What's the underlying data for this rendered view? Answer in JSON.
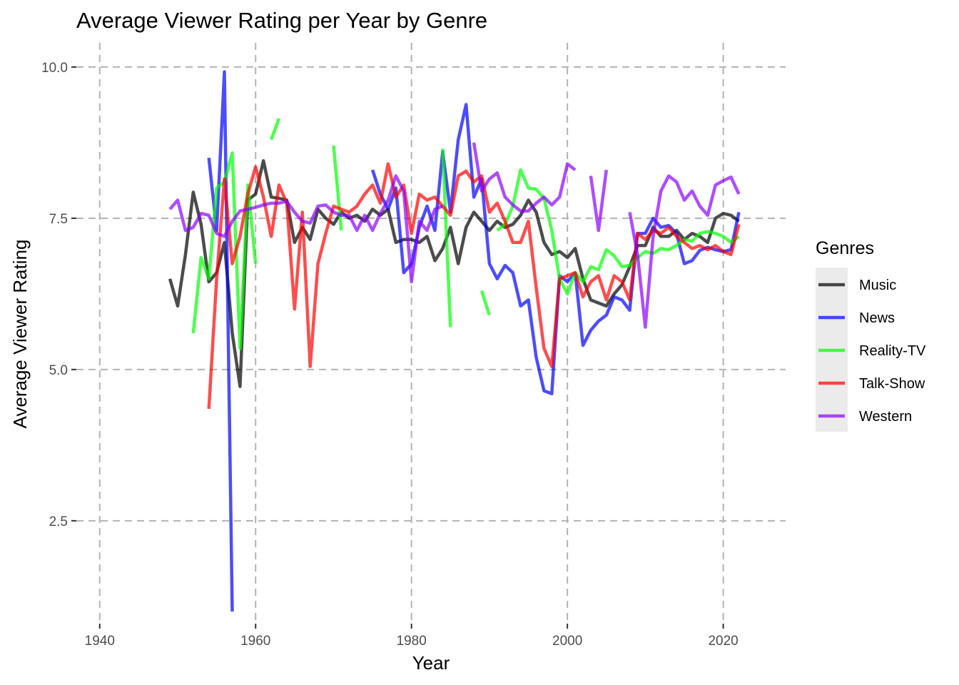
{
  "chart_data": {
    "type": "line",
    "title": "Average Viewer Rating per Year by Genre",
    "xlabel": "Year",
    "ylabel": "Average Viewer Rating",
    "xlim": [
      1937,
      2028
    ],
    "ylim": [
      0.8,
      10.4
    ],
    "x_ticks": [
      1940,
      1960,
      1980,
      2000,
      2020
    ],
    "y_ticks": [
      2.5,
      5.0,
      7.5,
      10.0
    ],
    "x_tick_labels": [
      "1940",
      "1960",
      "1980",
      "2000",
      "2020"
    ],
    "y_tick_labels": [
      "2.5",
      "5.0",
      "7.5",
      "10.0"
    ],
    "grid": true,
    "legend": {
      "title": "Genres",
      "placement": "right"
    },
    "series": [
      {
        "name": "Music",
        "color": "#000000",
        "points": [
          [
            1949,
            6.5
          ],
          [
            1950,
            6.05
          ],
          [
            1951,
            6.9
          ],
          [
            1952,
            7.93
          ],
          [
            1953,
            7.4
          ],
          [
            1954,
            6.45
          ],
          [
            1955,
            6.6
          ],
          [
            1956,
            7.1
          ],
          [
            1957,
            5.6
          ],
          [
            1958,
            4.72
          ],
          [
            1959,
            7.8
          ],
          [
            1960,
            7.9
          ],
          [
            1961,
            8.45
          ],
          [
            1962,
            7.85
          ],
          [
            1963,
            7.83
          ],
          [
            1964,
            7.8
          ],
          [
            1965,
            7.1
          ],
          [
            1966,
            7.35
          ],
          [
            1967,
            7.15
          ],
          [
            1968,
            7.65
          ],
          [
            1969,
            7.5
          ],
          [
            1970,
            7.4
          ],
          [
            1971,
            7.6
          ],
          [
            1972,
            7.5
          ],
          [
            1973,
            7.55
          ],
          [
            1974,
            7.45
          ],
          [
            1975,
            7.65
          ],
          [
            1976,
            7.55
          ],
          [
            1977,
            7.65
          ],
          [
            1978,
            7.1
          ],
          [
            1979,
            7.15
          ],
          [
            1980,
            7.15
          ],
          [
            1981,
            7.1
          ],
          [
            1982,
            7.2
          ],
          [
            1983,
            6.8
          ],
          [
            1984,
            7.0
          ],
          [
            1985,
            7.35
          ],
          [
            1986,
            6.75
          ],
          [
            1987,
            7.35
          ],
          [
            1988,
            7.6
          ],
          [
            1989,
            7.45
          ],
          [
            1990,
            7.3
          ],
          [
            1991,
            7.45
          ],
          [
            1992,
            7.35
          ],
          [
            1993,
            7.4
          ],
          [
            1994,
            7.55
          ],
          [
            1995,
            7.8
          ],
          [
            1996,
            7.6
          ],
          [
            1997,
            7.1
          ],
          [
            1998,
            6.9
          ],
          [
            1999,
            6.95
          ],
          [
            2000,
            6.85
          ],
          [
            2001,
            7.0
          ],
          [
            2002,
            6.5
          ],
          [
            2003,
            6.15
          ],
          [
            2004,
            6.1
          ],
          [
            2005,
            6.05
          ],
          [
            2006,
            6.25
          ],
          [
            2007,
            6.4
          ],
          [
            2008,
            6.7
          ],
          [
            2009,
            7.05
          ],
          [
            2010,
            7.05
          ],
          [
            2011,
            7.35
          ],
          [
            2012,
            7.2
          ],
          [
            2013,
            7.2
          ],
          [
            2014,
            7.3
          ],
          [
            2015,
            7.15
          ],
          [
            2016,
            7.25
          ],
          [
            2017,
            7.2
          ],
          [
            2018,
            7.1
          ],
          [
            2019,
            7.5
          ],
          [
            2020,
            7.58
          ],
          [
            2021,
            7.55
          ],
          [
            2022,
            7.45
          ]
        ]
      },
      {
        "name": "News",
        "color": "#0000ff",
        "points": [
          [
            1954,
            8.5
          ],
          [
            1955,
            7.3
          ],
          [
            1956,
            9.92
          ],
          [
            1957,
            1.0
          ],
          null,
          [
            1975,
            8.3
          ],
          [
            1976,
            7.9
          ],
          [
            1977,
            7.65
          ],
          [
            1978,
            8.0
          ],
          [
            1979,
            6.6
          ],
          [
            1980,
            6.75
          ],
          [
            1981,
            7.35
          ],
          [
            1982,
            7.7
          ],
          [
            1983,
            7.3
          ],
          [
            1984,
            8.6
          ],
          [
            1985,
            7.6
          ],
          [
            1986,
            8.8
          ],
          [
            1987,
            9.38
          ],
          [
            1988,
            7.85
          ],
          [
            1989,
            8.15
          ],
          [
            1990,
            6.75
          ],
          [
            1991,
            6.5
          ],
          [
            1992,
            6.72
          ],
          [
            1993,
            6.6
          ],
          [
            1994,
            6.05
          ],
          [
            1995,
            6.15
          ],
          [
            1996,
            5.2
          ],
          [
            1997,
            4.65
          ],
          [
            1998,
            4.6
          ],
          [
            1999,
            6.55
          ],
          [
            2000,
            6.45
          ],
          [
            2001,
            6.6
          ],
          [
            2002,
            5.4
          ],
          [
            2003,
            5.65
          ],
          [
            2004,
            5.8
          ],
          [
            2005,
            5.9
          ],
          [
            2006,
            6.2
          ],
          [
            2007,
            6.15
          ],
          [
            2008,
            5.98
          ],
          [
            2009,
            7.25
          ],
          [
            2010,
            7.25
          ],
          [
            2011,
            7.5
          ],
          [
            2012,
            7.35
          ],
          [
            2013,
            7.38
          ],
          [
            2014,
            7.25
          ],
          [
            2015,
            6.75
          ],
          [
            2016,
            6.8
          ],
          [
            2017,
            6.97
          ],
          [
            2018,
            7.02
          ],
          [
            2019,
            6.98
          ],
          [
            2020,
            6.95
          ],
          [
            2021,
            6.98
          ],
          [
            2022,
            7.6
          ]
        ]
      },
      {
        "name": "Reality-TV",
        "color": "#00ff00",
        "points": [
          [
            1952,
            5.6
          ],
          [
            1953,
            6.85
          ],
          [
            1954,
            6.5
          ],
          [
            1955,
            8.0
          ],
          [
            1956,
            8.1
          ],
          [
            1957,
            8.58
          ],
          [
            1958,
            5.35
          ],
          [
            1959,
            8.05
          ],
          [
            1960,
            6.75
          ],
          null,
          [
            1962,
            8.8
          ],
          [
            1963,
            9.15
          ],
          null,
          [
            1970,
            8.7
          ],
          [
            1971,
            7.3
          ],
          null,
          [
            1984,
            8.65
          ],
          [
            1985,
            5.7
          ],
          null,
          [
            1989,
            6.3
          ],
          [
            1990,
            5.9
          ],
          null,
          [
            1991,
            7.3
          ],
          [
            1992,
            7.4
          ],
          [
            1993,
            7.7
          ],
          [
            1994,
            8.3
          ],
          [
            1995,
            8.0
          ],
          [
            1996,
            7.98
          ],
          [
            1997,
            7.83
          ],
          [
            1998,
            7.3
          ],
          [
            1999,
            6.5
          ],
          [
            2000,
            6.25
          ],
          [
            2001,
            6.6
          ],
          [
            2002,
            6.45
          ],
          [
            2003,
            6.7
          ],
          [
            2004,
            6.65
          ],
          [
            2005,
            6.98
          ],
          [
            2006,
            6.88
          ],
          [
            2007,
            6.7
          ],
          [
            2008,
            6.72
          ],
          [
            2009,
            6.85
          ],
          [
            2010,
            6.95
          ],
          [
            2011,
            6.92
          ],
          [
            2012,
            7.0
          ],
          [
            2013,
            6.98
          ],
          [
            2014,
            7.05
          ],
          [
            2015,
            7.15
          ],
          [
            2016,
            7.12
          ],
          [
            2017,
            7.25
          ],
          [
            2018,
            7.28
          ],
          [
            2019,
            7.25
          ],
          [
            2020,
            7.2
          ],
          [
            2021,
            7.1
          ],
          [
            2022,
            7.2
          ]
        ]
      },
      {
        "name": "Talk-Show",
        "color": "#ff0000",
        "points": [
          [
            1954,
            4.35
          ],
          [
            1955,
            6.5
          ],
          [
            1956,
            8.15
          ],
          [
            1957,
            6.75
          ],
          [
            1958,
            7.2
          ],
          [
            1959,
            7.9
          ],
          [
            1960,
            8.35
          ],
          [
            1961,
            7.85
          ],
          [
            1962,
            7.2
          ],
          [
            1963,
            8.05
          ],
          [
            1964,
            7.75
          ],
          [
            1965,
            6.0
          ],
          [
            1966,
            7.6
          ],
          [
            1967,
            5.05
          ],
          [
            1968,
            6.75
          ],
          [
            1969,
            7.25
          ],
          [
            1970,
            7.7
          ],
          [
            1971,
            7.65
          ],
          [
            1972,
            7.6
          ],
          [
            1973,
            7.7
          ],
          [
            1974,
            7.9
          ],
          [
            1975,
            8.05
          ],
          [
            1976,
            7.75
          ],
          [
            1977,
            8.4
          ],
          [
            1978,
            7.85
          ],
          [
            1979,
            8.05
          ],
          [
            1980,
            7.25
          ],
          [
            1981,
            7.9
          ],
          [
            1982,
            7.8
          ],
          [
            1983,
            7.85
          ],
          [
            1984,
            7.7
          ],
          [
            1985,
            7.55
          ],
          [
            1986,
            8.2
          ],
          [
            1987,
            8.28
          ],
          [
            1988,
            8.1
          ],
          [
            1989,
            8.2
          ],
          [
            1990,
            7.6
          ],
          [
            1991,
            7.75
          ],
          [
            1992,
            7.45
          ],
          [
            1993,
            7.1
          ],
          [
            1994,
            7.1
          ],
          [
            1995,
            7.45
          ],
          [
            1996,
            6.35
          ],
          [
            1997,
            5.35
          ],
          [
            1998,
            5.05
          ],
          [
            1999,
            6.5
          ],
          [
            2000,
            6.55
          ],
          [
            2001,
            6.6
          ],
          [
            2002,
            6.2
          ],
          [
            2003,
            6.45
          ],
          [
            2004,
            6.55
          ],
          [
            2005,
            6.15
          ],
          [
            2006,
            6.55
          ],
          [
            2007,
            6.45
          ],
          [
            2008,
            6.15
          ],
          [
            2009,
            7.25
          ],
          [
            2010,
            7.15
          ],
          [
            2011,
            7.3
          ],
          [
            2012,
            7.25
          ],
          [
            2013,
            7.35
          ],
          [
            2014,
            7.2
          ],
          [
            2015,
            7.1
          ],
          [
            2016,
            7.0
          ],
          [
            2017,
            7.05
          ],
          [
            2018,
            6.98
          ],
          [
            2019,
            7.05
          ],
          [
            2020,
            6.95
          ],
          [
            2021,
            6.9
          ],
          [
            2022,
            7.4
          ]
        ]
      },
      {
        "name": "Western",
        "color": "#8b00ff",
        "points": [
          [
            1949,
            7.65
          ],
          [
            1950,
            7.8
          ],
          [
            1951,
            7.3
          ],
          [
            1952,
            7.35
          ],
          [
            1953,
            7.58
          ],
          [
            1954,
            7.55
          ],
          [
            1955,
            7.25
          ],
          [
            1956,
            7.2
          ],
          [
            1957,
            7.45
          ],
          [
            1958,
            7.62
          ],
          [
            1959,
            7.65
          ],
          [
            1960,
            7.68
          ],
          [
            1961,
            7.72
          ],
          [
            1962,
            7.75
          ],
          [
            1963,
            7.75
          ],
          [
            1964,
            7.78
          ],
          [
            1965,
            7.6
          ],
          [
            1966,
            7.45
          ],
          [
            1967,
            7.42
          ],
          [
            1968,
            7.7
          ],
          [
            1969,
            7.72
          ],
          [
            1970,
            7.6
          ],
          [
            1971,
            7.55
          ],
          [
            1972,
            7.55
          ],
          [
            1973,
            7.3
          ],
          [
            1974,
            7.55
          ],
          [
            1975,
            7.3
          ],
          [
            1976,
            7.58
          ],
          [
            1977,
            7.8
          ],
          [
            1978,
            8.2
          ],
          [
            1979,
            7.95
          ],
          [
            1980,
            6.45
          ],
          [
            1981,
            7.45
          ],
          [
            1982,
            7.3
          ],
          [
            1983,
            7.65
          ],
          [
            1984,
            7.7
          ],
          null,
          [
            1988,
            8.75
          ],
          [
            1989,
            7.95
          ],
          [
            1990,
            8.15
          ],
          [
            1991,
            8.25
          ],
          [
            1992,
            7.85
          ],
          [
            1993,
            7.72
          ],
          [
            1994,
            7.62
          ],
          [
            1995,
            7.62
          ],
          [
            1996,
            7.75
          ],
          [
            1997,
            7.85
          ],
          [
            1998,
            7.72
          ],
          [
            1999,
            7.85
          ],
          [
            2000,
            8.4
          ],
          [
            2001,
            8.3
          ],
          null,
          [
            2003,
            8.2
          ],
          [
            2004,
            7.3
          ],
          [
            2005,
            8.3
          ],
          null,
          [
            2008,
            7.6
          ],
          [
            2009,
            6.9
          ],
          [
            2010,
            5.7
          ],
          [
            2011,
            7.2
          ],
          [
            2012,
            7.95
          ],
          [
            2013,
            8.2
          ],
          [
            2014,
            8.1
          ],
          [
            2015,
            7.8
          ],
          [
            2016,
            7.95
          ],
          [
            2017,
            7.7
          ],
          [
            2018,
            7.55
          ],
          [
            2019,
            8.05
          ],
          [
            2020,
            8.12
          ],
          [
            2021,
            8.18
          ],
          [
            2022,
            7.9
          ]
        ]
      }
    ]
  }
}
